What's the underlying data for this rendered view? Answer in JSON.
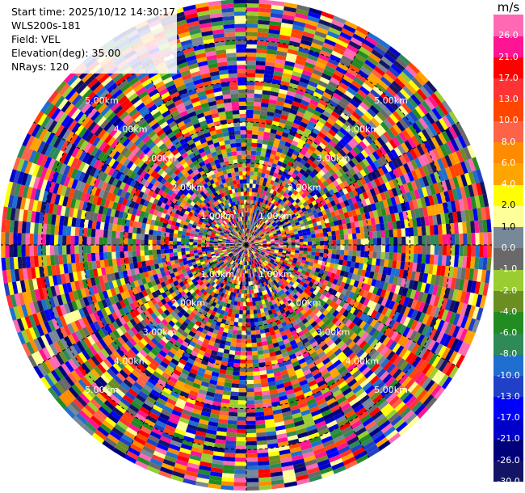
{
  "info": {
    "start_time": "Start time: 2025/10/12 14:30:17",
    "station": "WLS200s-181",
    "field": "Field: VEL",
    "elevation": "Elevation(deg): 35.00",
    "nrays": "NRays: 120"
  },
  "colorbar": {
    "unit": "m/s",
    "colors": [
      "#141466",
      "#00007a",
      "#0000c8",
      "#0000ff",
      "#2040c8",
      "#1e6fd0",
      "#2e8b57",
      "#228b22",
      "#6b8e23",
      "#9acd32",
      "#696969",
      "#778899",
      "#ffff99",
      "#ffff00",
      "#ffa500",
      "#ff8c00",
      "#ff6347",
      "#ff4500",
      "#ff3333",
      "#ff0000",
      "#ff1493",
      "#ff69b4"
    ],
    "ticks": [
      "-30.0",
      "-26.0",
      "-21.0",
      "-17.0",
      "-13.0",
      "-10.0",
      "-8.0",
      "-6.0",
      "-4.0",
      "-2.0",
      "-1.0",
      "0.0",
      "1.0",
      "2.0",
      "4.0",
      "6.0",
      "8.0",
      "10.0",
      "13.0",
      "17.0",
      "21.0",
      "26.0"
    ]
  },
  "chart_data": {
    "type": "heatmap",
    "projection": "polar (PPI)",
    "field": "VEL",
    "units": "m/s",
    "value_range": [
      -30,
      30
    ],
    "nrays": 120,
    "range_rings": [
      {
        "label": "1.00km",
        "range_km": 1
      },
      {
        "label": "2.00km",
        "range_km": 2
      },
      {
        "label": "3.00km",
        "range_km": 3
      },
      {
        "label": "4.00km",
        "range_km": 4
      },
      {
        "label": "5.00km",
        "range_km": 5
      }
    ],
    "max_range_km": 6.0,
    "grid": true
  }
}
